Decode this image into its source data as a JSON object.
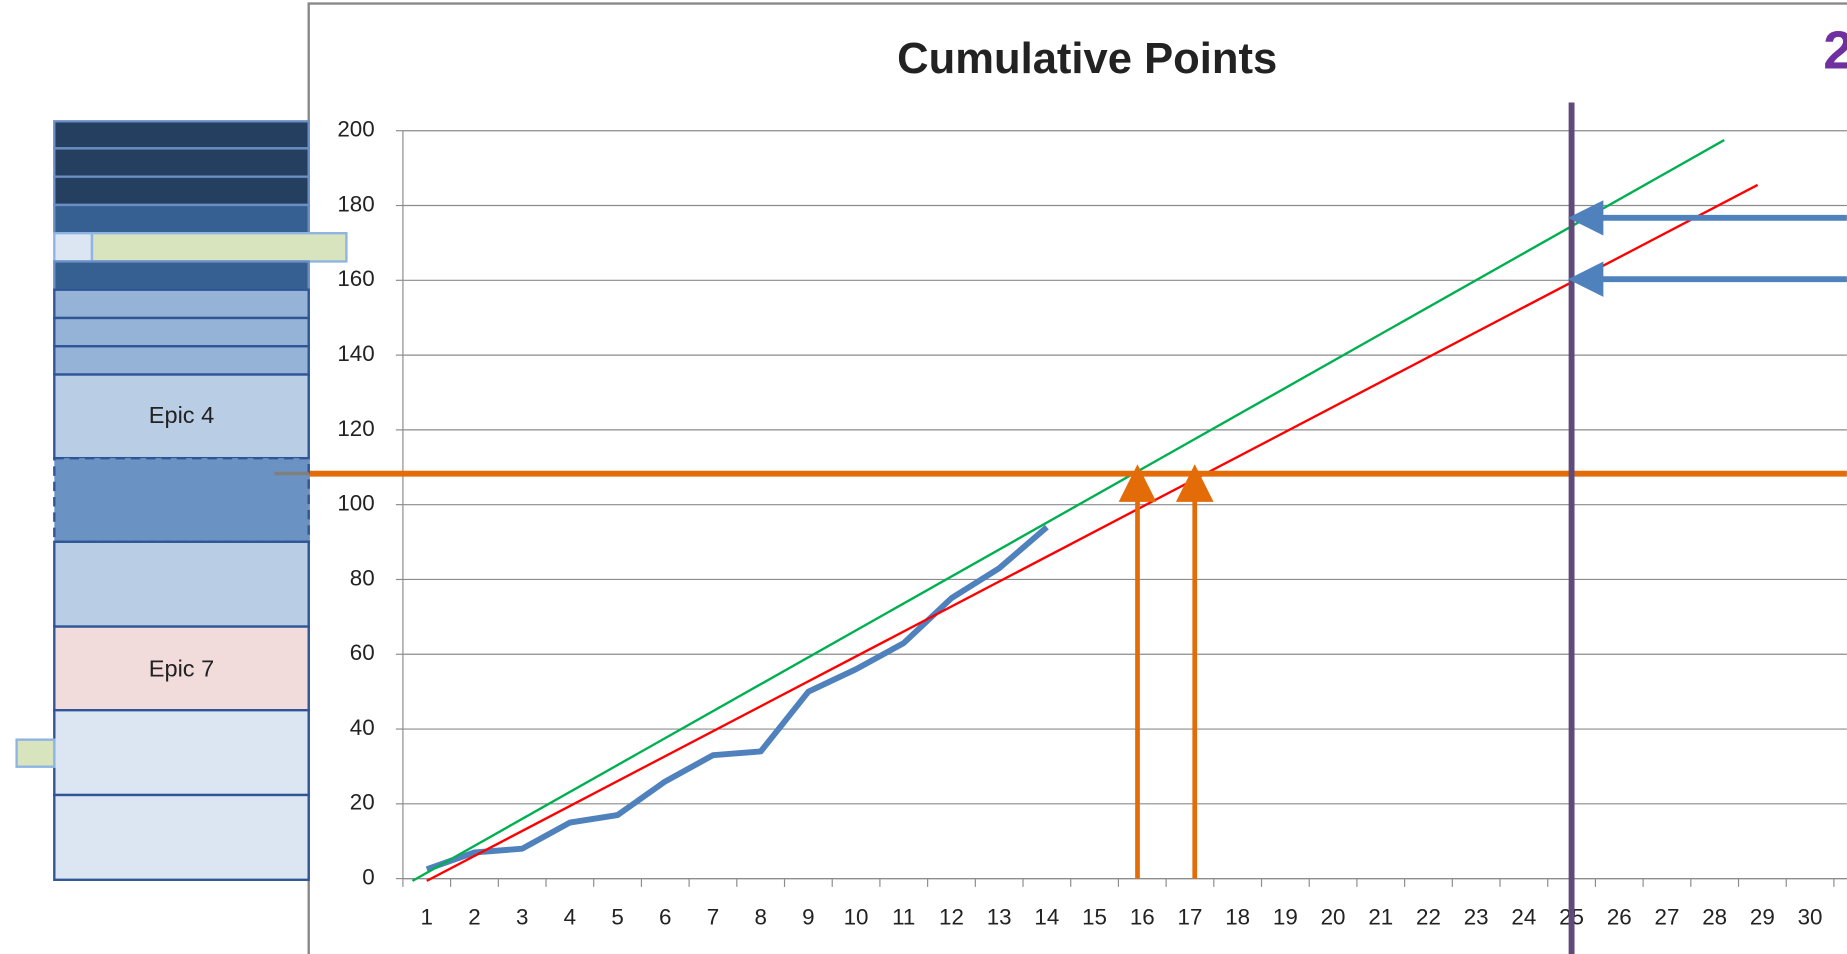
{
  "chart_data": {
    "type": "line",
    "title": "Cumulative Points",
    "annotations": [
      "Epic 4",
      "Epic 7",
      "2"
    ],
    "categories": [
      "1",
      "2",
      "3",
      "4",
      "5",
      "6",
      "7",
      "8",
      "9",
      "10",
      "11",
      "12",
      "13",
      "14",
      "15",
      "16",
      "17",
      "18",
      "19",
      "20",
      "21",
      "22",
      "23",
      "24",
      "25",
      "26",
      "27",
      "28",
      "29",
      "30"
    ],
    "series": [
      {
        "color": "#4f81bd",
        "values": [
          2.5,
          7,
          8,
          15,
          17,
          26,
          33,
          34,
          50,
          56,
          63,
          75,
          83,
          94,
          null,
          null,
          null,
          null,
          null,
          null,
          null,
          null,
          null,
          null,
          null,
          null,
          null,
          null,
          null,
          null
        ]
      },
      {
        "color": "#00b050",
        "x": [
          0.7,
          28.2
        ],
        "values": [
          -0.6,
          197.5
        ]
      },
      {
        "color": "#ff0000",
        "x": [
          1,
          28.9
        ],
        "values": [
          -0.6,
          185.5
        ]
      }
    ],
    "xlim": [
      0.5,
      30.5
    ],
    "ylim": [
      0,
      200
    ],
    "yticks": [
      0,
      20,
      40,
      60,
      80,
      100,
      120,
      140,
      160,
      180,
      200
    ],
    "grid": true,
    "reference_lines": {
      "y": 108.3,
      "y_color": "#e36c09",
      "arrows_x": [
        15.9,
        17.1
      ],
      "x": 25,
      "x_color": "#604a7b",
      "arrows_y": [
        176.7,
        160.3
      ],
      "arrows_y_color": "#4f81bd"
    }
  }
}
